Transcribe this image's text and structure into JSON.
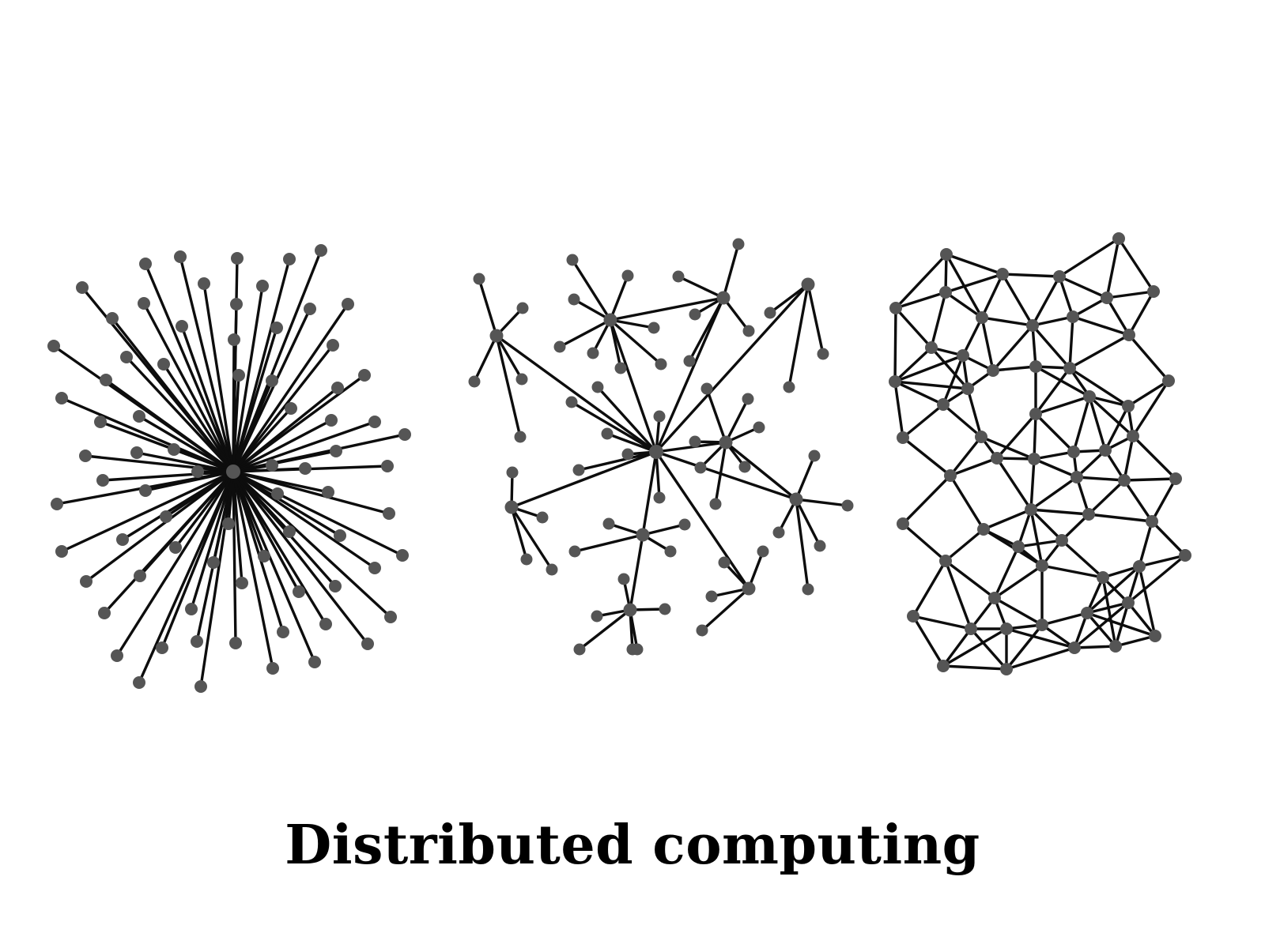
{
  "caption": "Distributed computing",
  "colors": {
    "background": "#ffffff",
    "edge": "#0d0d0d",
    "node": "#555555",
    "text": "#000000"
  },
  "panels": [
    {
      "id": "centralized",
      "topology": "star"
    },
    {
      "id": "decentralized",
      "topology": "hub-and-spoke clusters"
    },
    {
      "id": "distributed",
      "topology": "mesh"
    }
  ]
}
